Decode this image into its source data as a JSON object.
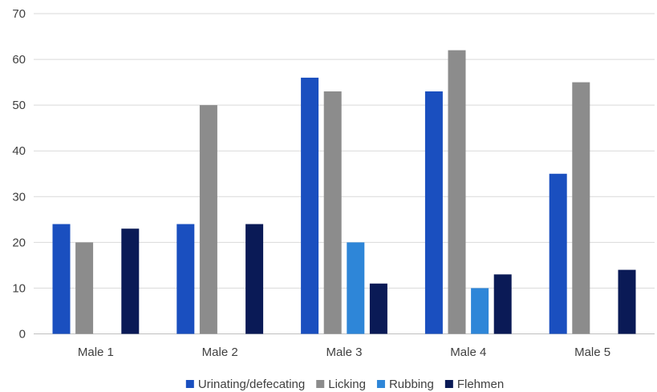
{
  "chart_data": {
    "type": "bar",
    "title": "",
    "xlabel": "",
    "ylabel": "",
    "categories": [
      "Male 1",
      "Male 2",
      "Male 3",
      "Male 4",
      "Male 5"
    ],
    "ylim": [
      0,
      70
    ],
    "yticks": [
      0,
      10,
      20,
      30,
      40,
      50,
      60,
      70
    ],
    "grid": true,
    "legend_position": "bottom",
    "series": [
      {
        "name": "Urinating/defecating",
        "color": "#1a4fbf",
        "values": [
          24,
          24,
          56,
          53,
          35
        ]
      },
      {
        "name": "Licking",
        "color": "#8c8c8c",
        "values": [
          20,
          50,
          53,
          62,
          55
        ]
      },
      {
        "name": "Rubbing",
        "color": "#2e86d8",
        "values": [
          0,
          0,
          20,
          10,
          0
        ]
      },
      {
        "name": "Flehmen",
        "color": "#0a1a56",
        "values": [
          23,
          24,
          11,
          13,
          14
        ]
      }
    ]
  }
}
